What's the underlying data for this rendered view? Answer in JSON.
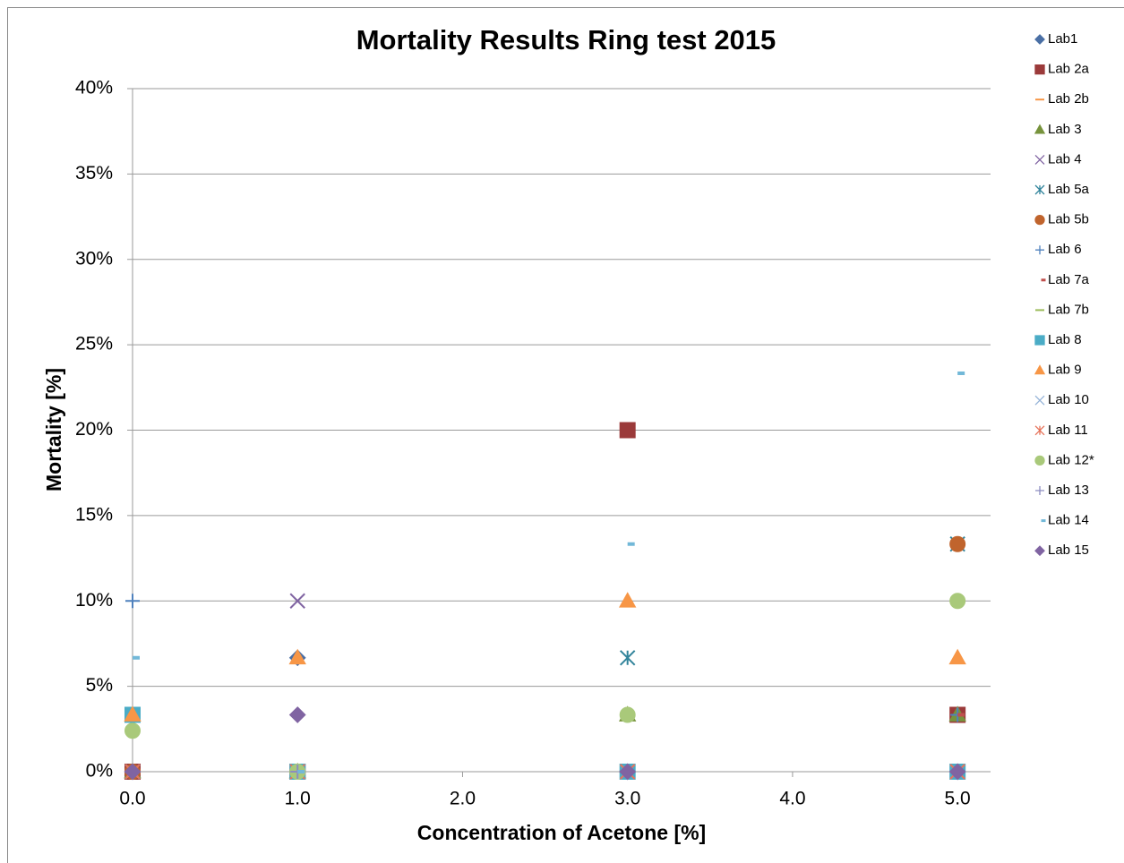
{
  "chart_data": {
    "type": "scatter",
    "title": "Mortality Results Ring test 2015",
    "x_label": "Concentration of Acetone [%]",
    "y_label": "Mortality [%]",
    "x": [
      0,
      1,
      3,
      5
    ],
    "xlim": [
      0,
      5.2
    ],
    "xticks": [
      {
        "value": 0,
        "label": "0.0"
      },
      {
        "value": 1,
        "label": "1.0"
      },
      {
        "value": 2,
        "label": "2.0"
      },
      {
        "value": 3,
        "label": "3.0"
      },
      {
        "value": 4,
        "label": "4.0"
      },
      {
        "value": 5,
        "label": "5.0"
      }
    ],
    "ylim": [
      0,
      40
    ],
    "yticks": [
      {
        "value": 0,
        "label": "0%"
      },
      {
        "value": 5,
        "label": "5%"
      },
      {
        "value": 10,
        "label": "10%"
      },
      {
        "value": 15,
        "label": "15%"
      },
      {
        "value": 20,
        "label": "20%"
      },
      {
        "value": 25,
        "label": "25%"
      },
      {
        "value": 30,
        "label": "30%"
      },
      {
        "value": 35,
        "label": "35%"
      },
      {
        "value": 40,
        "label": "40%"
      }
    ],
    "grid": true,
    "legend": "right",
    "series": [
      {
        "name": "Lab1",
        "color": "#4a6fa5",
        "marker": "diamond",
        "values": [
          0,
          6.67,
          0,
          0
        ]
      },
      {
        "name": "Lab 2a",
        "color": "#9b3a3a",
        "marker": "square",
        "values": [
          0,
          0,
          20,
          3.33
        ]
      },
      {
        "name": "Lab 2b",
        "color": "#f79646",
        "marker": "dash",
        "values": [
          0,
          0,
          0,
          0
        ]
      },
      {
        "name": "Lab 3",
        "color": "#77933c",
        "marker": "triangle",
        "values": [
          0,
          0,
          3.33,
          3.33
        ]
      },
      {
        "name": "Lab 4",
        "color": "#8064a2",
        "marker": "x",
        "values": [
          0,
          10,
          0,
          0
        ]
      },
      {
        "name": "Lab 5a",
        "color": "#31849b",
        "marker": "star",
        "values": [
          0,
          0,
          6.67,
          13.33
        ]
      },
      {
        "name": "Lab 5b",
        "color": "#c0642d",
        "marker": "circle",
        "values": [
          0,
          0,
          0,
          13.33
        ]
      },
      {
        "name": "Lab 6",
        "color": "#4f81bd",
        "marker": "plus",
        "values": [
          10,
          0,
          0,
          3.33
        ]
      },
      {
        "name": "Lab 7a",
        "color": "#c0504d",
        "marker": "shortdash",
        "values": [
          0,
          0,
          0,
          3.33
        ]
      },
      {
        "name": "Lab 7b",
        "color": "#9bbb59",
        "marker": "dash",
        "values": [
          0,
          0,
          0,
          0
        ]
      },
      {
        "name": "Lab 8",
        "color": "#4bacc6",
        "marker": "square",
        "values": [
          3.33,
          0,
          0,
          0
        ]
      },
      {
        "name": "Lab 9",
        "color": "#f79646",
        "marker": "triangle",
        "values": [
          3.33,
          6.67,
          10,
          6.67
        ]
      },
      {
        "name": "Lab 10",
        "color": "#95b3d7",
        "marker": "x",
        "values": [
          0,
          0,
          0,
          0
        ]
      },
      {
        "name": "Lab 11",
        "color": "#e6735a",
        "marker": "star",
        "values": [
          0,
          0,
          0,
          0
        ]
      },
      {
        "name": "Lab 12*",
        "color": "#a9c97a",
        "marker": "circle",
        "values": [
          2.4,
          0,
          3.33,
          10
        ]
      },
      {
        "name": "Lab 13",
        "color": "#8c8cc0",
        "marker": "plus",
        "values": [
          0,
          0,
          0,
          0
        ]
      },
      {
        "name": "Lab 14",
        "color": "#72b8d8",
        "marker": "shortdash",
        "values": [
          6.67,
          0,
          13.33,
          23.33
        ]
      },
      {
        "name": "Lab 15",
        "color": "#8064a2",
        "marker": "diamond",
        "values": [
          0,
          3.33,
          0,
          0
        ]
      }
    ]
  }
}
